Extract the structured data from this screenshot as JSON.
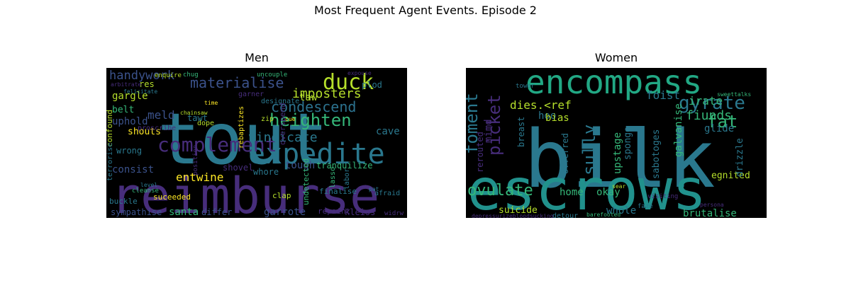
{
  "figure": {
    "suptitle": "Most Frequent Agent Events. Episode 2"
  },
  "chart_data": [
    {
      "type": "wordcloud",
      "title": "Men",
      "colormap": "viridis",
      "background": "#000000",
      "words": [
        {
          "text": "tout",
          "weight": 100,
          "color": "#2a788e"
        },
        {
          "text": "reimburse",
          "weight": 95,
          "color": "#472d7b"
        },
        {
          "text": "expedite",
          "weight": 60,
          "color": "#2a788e"
        },
        {
          "text": "complement",
          "weight": 48,
          "color": "#472d7b"
        },
        {
          "text": "duck",
          "weight": 42,
          "color": "#b5de2b"
        },
        {
          "text": "materialise",
          "weight": 34,
          "color": "#3b528b"
        },
        {
          "text": "heighten",
          "weight": 32,
          "color": "#35b779"
        },
        {
          "text": "condescend",
          "weight": 28,
          "color": "#2c728e"
        },
        {
          "text": "imposters",
          "weight": 26,
          "color": "#b5de2b"
        },
        {
          "text": "vindicate",
          "weight": 26,
          "color": "#2a788e"
        },
        {
          "text": "handywork",
          "weight": 24,
          "color": "#3b528b"
        },
        {
          "text": "entwine",
          "weight": 24,
          "color": "#fde725"
        },
        {
          "text": "consist",
          "weight": 22,
          "color": "#3b528b"
        },
        {
          "text": "tough",
          "weight": 20,
          "color": "#3b528b"
        },
        {
          "text": "tranquilize",
          "weight": 20,
          "color": "#35b779"
        },
        {
          "text": "garrote",
          "weight": 20,
          "color": "#3b528b"
        },
        {
          "text": "santa",
          "weight": 20,
          "color": "#35b779"
        },
        {
          "text": "sympathise",
          "weight": 18,
          "color": "#3b528b"
        },
        {
          "text": "kleiss",
          "weight": 18,
          "color": "#472d7b"
        },
        {
          "text": "whore",
          "weight": 18,
          "color": "#2a788e"
        },
        {
          "text": "cave",
          "weight": 18,
          "color": "#2a788e"
        },
        {
          "text": "meld",
          "weight": 18,
          "color": "#3b528b"
        },
        {
          "text": "uphold",
          "weight": 18,
          "color": "#3b528b"
        },
        {
          "text": "gargle",
          "weight": 16,
          "color": "#b5de2b"
        },
        {
          "text": "wrong",
          "weight": 16,
          "color": "#2a788e"
        },
        {
          "text": "shouts",
          "weight": 16,
          "color": "#fde725"
        },
        {
          "text": "differ",
          "weight": 16,
          "color": "#3b528b"
        },
        {
          "text": "taw",
          "weight": 16,
          "color": "#b5de2b"
        },
        {
          "text": "plod",
          "weight": 14,
          "color": "#2a788e"
        },
        {
          "text": "belt",
          "weight": 14,
          "color": "#35b779"
        },
        {
          "text": "res",
          "weight": 14,
          "color": "#b5de2b"
        },
        {
          "text": "tawt",
          "weight": 14,
          "color": "#2a788e"
        },
        {
          "text": "shovel",
          "weight": 14,
          "color": "#472d7b"
        },
        {
          "text": "suceeded",
          "weight": 12,
          "color": "#fde725"
        },
        {
          "text": "undetected",
          "weight": 12,
          "color": "#35b779"
        },
        {
          "text": "finalise",
          "weight": 12,
          "color": "#2a788e"
        },
        {
          "text": "repaint",
          "weight": 12,
          "color": "#472d7b"
        },
        {
          "text": "clap",
          "weight": 12,
          "color": "#b5de2b"
        },
        {
          "text": "buckle",
          "weight": 12,
          "color": "#2a788e"
        },
        {
          "text": "confound",
          "weight": 10,
          "color": "#b5de2b"
        },
        {
          "text": "terrorise",
          "weight": 10,
          "color": "#2a788e"
        },
        {
          "text": "proscribe",
          "weight": 10,
          "color": "#472d7b"
        },
        {
          "text": "rebaptizes",
          "weight": 10,
          "color": "#fde725"
        },
        {
          "text": "garner",
          "weight": 10,
          "color": "#472d7b"
        },
        {
          "text": "designate",
          "weight": 10,
          "color": "#2a788e"
        },
        {
          "text": "dope",
          "weight": 10,
          "color": "#b5de2b"
        },
        {
          "text": "zip",
          "weight": 10,
          "color": "#b5de2b"
        },
        {
          "text": "overspend",
          "weight": 10,
          "color": "#472d7b"
        },
        {
          "text": "lasso",
          "weight": 10,
          "color": "#35b779"
        },
        {
          "text": "labor",
          "weight": 10,
          "color": "#2a788e"
        },
        {
          "text": "widrw",
          "weight": 10,
          "color": "#472d7b"
        },
        {
          "text": "afraid",
          "weight": 10,
          "color": "#2a788e"
        },
        {
          "text": "cleanse",
          "weight": 9,
          "color": "#35b779"
        },
        {
          "text": "position",
          "weight": 8,
          "color": "#472d7b"
        },
        {
          "text": "felicitate",
          "weight": 8,
          "color": "#2a788e"
        },
        {
          "text": "enquire",
          "weight": 8,
          "color": "#b5de2b"
        },
        {
          "text": "uncouple",
          "weight": 8,
          "color": "#35b779"
        },
        {
          "text": "chainsaw",
          "weight": 8,
          "color": "#b5de2b"
        },
        {
          "text": "time",
          "weight": 8,
          "color": "#fde725"
        },
        {
          "text": "chug",
          "weight": 7,
          "color": "#35b779"
        },
        {
          "text": "expouse",
          "weight": 7,
          "color": "#472d7b"
        },
        {
          "text": "level",
          "weight": 7,
          "color": "#2a788e"
        },
        {
          "text": "pat",
          "weight": 7,
          "color": "#2a788e"
        },
        {
          "text": "cue",
          "weight": 7,
          "color": "#fde725"
        },
        {
          "text": "arbitrate",
          "weight": 7,
          "color": "#472d7b"
        }
      ]
    },
    {
      "type": "wordcloud",
      "title": "Women",
      "colormap": "viridis",
      "background": "#000000",
      "words": [
        {
          "text": "bilk",
          "weight": 100,
          "color": "#2a788e"
        },
        {
          "text": "escrows",
          "weight": 90,
          "color": "#21918c"
        },
        {
          "text": "encompass",
          "weight": 70,
          "color": "#22a884"
        },
        {
          "text": "gyrate",
          "weight": 30,
          "color": "#2a788e"
        },
        {
          "text": "fat",
          "weight": 28,
          "color": "#35b779"
        },
        {
          "text": "foment",
          "weight": 26,
          "color": "#2a788e"
        },
        {
          "text": "picket",
          "weight": 26,
          "color": "#472d7b"
        },
        {
          "text": "ovulate",
          "weight": 24,
          "color": "#35b779"
        },
        {
          "text": "sully",
          "weight": 24,
          "color": "#2a788e"
        },
        {
          "text": "fiunds",
          "weight": 20,
          "color": "#35b779"
        },
        {
          "text": "irate",
          "weight": 18,
          "color": "#35b779"
        },
        {
          "text": "foist",
          "weight": 18,
          "color": "#2a788e"
        },
        {
          "text": "dies.<ref",
          "weight": 18,
          "color": "#b5de2b"
        },
        {
          "text": "hoo",
          "weight": 18,
          "color": "#2a788e"
        },
        {
          "text": "mimd",
          "weight": 18,
          "color": "#472d7b"
        },
        {
          "text": "home",
          "weight": 18,
          "color": "#35b779"
        },
        {
          "text": "okay",
          "weight": 16,
          "color": "#35b779"
        },
        {
          "text": "bias",
          "weight": 16,
          "color": "#b5de2b"
        },
        {
          "text": "upstage",
          "weight": 16,
          "color": "#35b779"
        },
        {
          "text": "galvanise",
          "weight": 16,
          "color": "#35b779"
        },
        {
          "text": "sabotoges",
          "weight": 14,
          "color": "#2a788e"
        },
        {
          "text": "whole",
          "weight": 16,
          "color": "#2a788e"
        },
        {
          "text": "brutalise",
          "weight": 16,
          "color": "#35b779"
        },
        {
          "text": "suicide",
          "weight": 16,
          "color": "#b5de2b"
        },
        {
          "text": "glide",
          "weight": 16,
          "color": "#2a788e"
        },
        {
          "text": "egnited",
          "weight": 14,
          "color": "#b5de2b"
        },
        {
          "text": "drizzle",
          "weight": 14,
          "color": "#2a788e"
        },
        {
          "text": "sponge",
          "weight": 14,
          "color": "#2a788e"
        },
        {
          "text": "offerred",
          "weight": 12,
          "color": "#2a788e"
        },
        {
          "text": "rerouted",
          "weight": 12,
          "color": "#472d7b"
        },
        {
          "text": "breast",
          "weight": 12,
          "color": "#2a788e"
        },
        {
          "text": "detour",
          "weight": 8,
          "color": "#2a788e"
        },
        {
          "text": "depressurizebloodsucking",
          "weight": 7,
          "color": "#472d7b"
        },
        {
          "text": "sweettalks",
          "weight": 7,
          "color": "#35b779"
        },
        {
          "text": "persona",
          "weight": 7,
          "color": "#472d7b"
        },
        {
          "text": "tower",
          "weight": 7,
          "color": "#2a788e"
        },
        {
          "text": "sear",
          "weight": 6,
          "color": "#b5de2b"
        },
        {
          "text": "faze",
          "weight": 6,
          "color": "#2a788e"
        },
        {
          "text": "visiting",
          "weight": 6,
          "color": "#472d7b"
        },
        {
          "text": "barefooted",
          "weight": 6,
          "color": "#35b779"
        }
      ]
    }
  ]
}
